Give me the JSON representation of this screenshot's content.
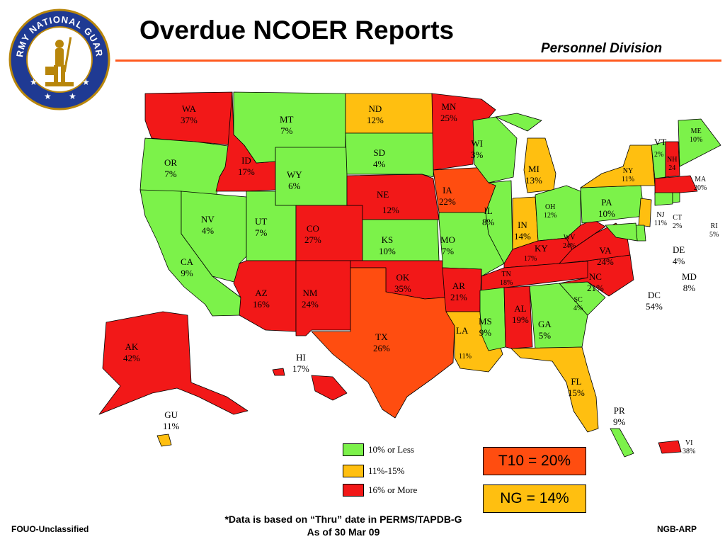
{
  "header": {
    "title": "Overdue NCOER Reports",
    "division": "Personnel Division"
  },
  "seal": {
    "text": "ARMY NATIONAL GUARD"
  },
  "colors": {
    "low": "#7cf24a",
    "mid": "#ffbf10",
    "high": "#f21818",
    "highAlt": "#ff4d10",
    "rule": "#ff5a1f"
  },
  "states": {
    "WA": "37%",
    "OR": "7%",
    "CA": "9%",
    "ID": "17%",
    "NV": "4%",
    "MT": "7%",
    "WY": "6%",
    "UT": "7%",
    "AZ": "16%",
    "CO": "27%",
    "NM": "24%",
    "ND": "12%",
    "SD": "4%",
    "NE": "12%",
    "KS": "10%",
    "OK": "35%",
    "TX": "26%",
    "MN": "25%",
    "IA": "22%",
    "MO": "7%",
    "AR": "21%",
    "LA": "11%",
    "WI": "3%",
    "IL": "8%",
    "MI": "13%",
    "IN": "14%",
    "OH": "12%",
    "KY": "17%",
    "TN": "18%",
    "MS": "9%",
    "AL": "19%",
    "GA": "5%",
    "FL": "15%",
    "SC": "4%",
    "NC": "21%",
    "VA": "24%",
    "WV": "24%",
    "PA": "10%",
    "NY": "11%",
    "VT": "2%",
    "NH": "24",
    "ME": "10%",
    "MA": "20%",
    "CT": "2%",
    "RI": "5%",
    "NJ": "11%",
    "DE": "4%",
    "MD": "8%",
    "DC": "54%",
    "AK": "42%",
    "HI": "17%",
    "GU": "11%",
    "PR": "9%",
    "VI": "38%"
  },
  "legend": [
    {
      "label": "10% or Less",
      "color": "#7cf24a"
    },
    {
      "label": "11%-15%",
      "color": "#ffbf10"
    },
    {
      "label": "16% or More",
      "color": "#f21818"
    }
  ],
  "totals": {
    "t10": "T10 = 20%",
    "ng": "NG = 14%"
  },
  "footer": {
    "left": "FOUO-Unclassified",
    "right": "NGB-ARP",
    "note_line1": "*Data is based on “Thru” date in PERMS/TAPDB-G",
    "note_line2": "As of  30 Mar 09"
  }
}
